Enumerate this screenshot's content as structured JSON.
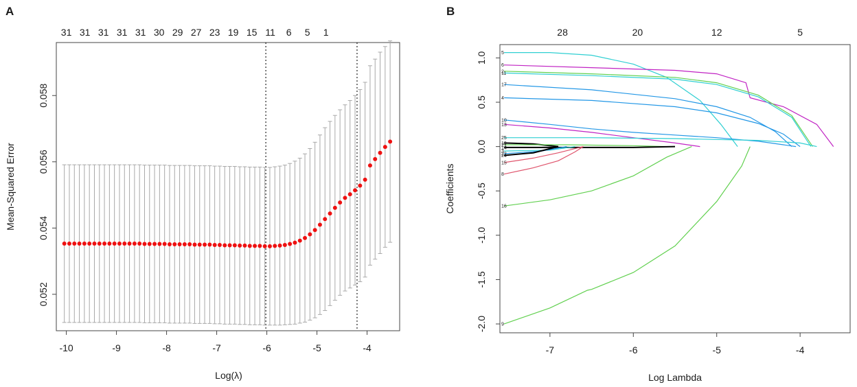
{
  "panel_labels": [
    "A",
    "B"
  ],
  "chart_data": [
    {
      "type": "scatter",
      "title": "",
      "xlabel": "Log(λ)",
      "ylabel": "Mean-Squared Error",
      "xlim": [
        -10.2,
        -3.35
      ],
      "ylim": [
        0.0509,
        0.0596
      ],
      "x_ticks": [
        -10,
        -9,
        -8,
        -7,
        -6,
        -5,
        -4
      ],
      "x_tick_labels": [
        "-10",
        "-9",
        "-8",
        "-7",
        "-6",
        "-5",
        "-4"
      ],
      "y_ticks": [
        0.052,
        0.054,
        0.056,
        0.058
      ],
      "y_tick_labels": [
        "0.052",
        "0.054",
        "0.056",
        "0.058"
      ],
      "top_axis_labels": [
        "31",
        "31",
        "31",
        "31",
        "31",
        "30",
        "29",
        "27",
        "23",
        "19",
        "15",
        "11",
        "6",
        "5",
        "1"
      ],
      "top_axis_label_x": [
        -10,
        -9.63,
        -9.26,
        -8.89,
        -8.52,
        -8.15,
        -7.78,
        -7.41,
        -7.04,
        -6.67,
        -6.3,
        -5.93,
        -5.56,
        -5.19,
        -4.82
      ],
      "vlines": [
        -6.02,
        -4.2
      ],
      "series": [
        {
          "name": "cv-mean",
          "x": [
            -10.04,
            -9.94,
            -9.84,
            -9.74,
            -9.64,
            -9.54,
            -9.44,
            -9.34,
            -9.24,
            -9.14,
            -9.04,
            -8.94,
            -8.84,
            -8.74,
            -8.64,
            -8.54,
            -8.44,
            -8.34,
            -8.24,
            -8.14,
            -8.04,
            -7.94,
            -7.84,
            -7.74,
            -7.64,
            -7.54,
            -7.44,
            -7.34,
            -7.24,
            -7.14,
            -7.04,
            -6.94,
            -6.84,
            -6.74,
            -6.64,
            -6.54,
            -6.44,
            -6.34,
            -6.24,
            -6.14,
            -6.04,
            -5.94,
            -5.84,
            -5.74,
            -5.64,
            -5.54,
            -5.44,
            -5.34,
            -5.24,
            -5.14,
            -5.04,
            -4.94,
            -4.84,
            -4.74,
            -4.64,
            -4.54,
            -4.44,
            -4.34,
            -4.24,
            -4.14,
            -4.04,
            -3.94,
            -3.84,
            -3.74,
            -3.64,
            -3.54
          ],
          "mean": [
            0.05353,
            0.05353,
            0.05353,
            0.05353,
            0.05353,
            0.05353,
            0.05353,
            0.05353,
            0.05353,
            0.05353,
            0.05353,
            0.05353,
            0.05353,
            0.05353,
            0.05353,
            0.05353,
            0.05352,
            0.05352,
            0.05352,
            0.05352,
            0.05352,
            0.05351,
            0.05351,
            0.05351,
            0.05351,
            0.05351,
            0.0535,
            0.0535,
            0.0535,
            0.0535,
            0.05349,
            0.05349,
            0.05348,
            0.05348,
            0.05348,
            0.05347,
            0.05347,
            0.05346,
            0.05346,
            0.05346,
            0.05345,
            0.05345,
            0.05346,
            0.05347,
            0.05349,
            0.05352,
            0.05356,
            0.05362,
            0.0537,
            0.05381,
            0.05394,
            0.0541,
            0.05427,
            0.05444,
            0.05461,
            0.05477,
            0.05491,
            0.05502,
            0.05514,
            0.05528,
            0.05546,
            0.05589,
            0.05608,
            0.05627,
            0.05645,
            0.05661
          ],
          "upper": [
            0.05591,
            0.05591,
            0.05591,
            0.05591,
            0.05591,
            0.05591,
            0.05591,
            0.05591,
            0.05591,
            0.05591,
            0.05591,
            0.05591,
            0.05591,
            0.05591,
            0.05591,
            0.05591,
            0.0559,
            0.0559,
            0.0559,
            0.0559,
            0.0559,
            0.05589,
            0.05589,
            0.05589,
            0.05589,
            0.05589,
            0.05588,
            0.05588,
            0.05588,
            0.05588,
            0.05587,
            0.05587,
            0.05586,
            0.05586,
            0.05586,
            0.05585,
            0.05585,
            0.05584,
            0.05584,
            0.05584,
            0.05583,
            0.05583,
            0.05585,
            0.05587,
            0.0559,
            0.05595,
            0.05602,
            0.05611,
            0.05624,
            0.0564,
            0.05659,
            0.05681,
            0.05703,
            0.05722,
            0.0574,
            0.05757,
            0.05772,
            0.05785,
            0.058,
            0.05818,
            0.0584,
            0.0589,
            0.0591,
            0.05931,
            0.05948,
            0.05965
          ],
          "lower": [
            0.05115,
            0.05115,
            0.05115,
            0.05115,
            0.05115,
            0.05115,
            0.05115,
            0.05115,
            0.05115,
            0.05115,
            0.05115,
            0.05115,
            0.05115,
            0.05115,
            0.05115,
            0.05115,
            0.05114,
            0.05114,
            0.05114,
            0.05114,
            0.05114,
            0.05113,
            0.05113,
            0.05113,
            0.05113,
            0.05113,
            0.05112,
            0.05112,
            0.05112,
            0.05112,
            0.05111,
            0.05111,
            0.0511,
            0.0511,
            0.0511,
            0.05109,
            0.05109,
            0.05108,
            0.05108,
            0.05108,
            0.05107,
            0.05107,
            0.05107,
            0.05107,
            0.05108,
            0.05109,
            0.0511,
            0.05113,
            0.05116,
            0.05122,
            0.05129,
            0.05139,
            0.05151,
            0.05166,
            0.05182,
            0.05197,
            0.0521,
            0.05219,
            0.05228,
            0.05238,
            0.05252,
            0.05288,
            0.05306,
            0.05323,
            0.05342,
            0.05357
          ]
        }
      ]
    },
    {
      "type": "line",
      "title": "",
      "xlabel": "Log Lambda",
      "ylabel": "Coefficients",
      "xlim": [
        -7.6,
        -3.4
      ],
      "ylim": [
        -2.1,
        1.15
      ],
      "x_ticks": [
        -7,
        -6,
        -5,
        -4
      ],
      "x_tick_labels": [
        "-7",
        "-6",
        "-5",
        "-4"
      ],
      "y_ticks": [
        -2.0,
        -1.5,
        -1.0,
        -0.5,
        0.0,
        0.5,
        1.0
      ],
      "y_tick_labels": [
        "-2.0",
        "-1.5",
        "-1.0",
        "-0.5",
        "0.0",
        "0.5",
        "1.0"
      ],
      "top_axis_labels": [
        "28",
        "20",
        "12",
        "5"
      ],
      "top_axis_label_x": [
        -6.85,
        -5.95,
        -5.0,
        -4.0
      ],
      "series": [
        {
          "name": "5",
          "color": "#2ECFD2",
          "x": [
            -7.55,
            -7.0,
            -6.5,
            -6.0,
            -5.6,
            -5.2,
            -4.95,
            -4.75
          ],
          "y": [
            1.06,
            1.06,
            1.03,
            0.93,
            0.78,
            0.52,
            0.25,
            0.0
          ]
        },
        {
          "name": "6",
          "color": "#C021C3",
          "x": [
            -7.55,
            -6.5,
            -5.5,
            -5.0,
            -4.65,
            -4.6,
            -4.2,
            -3.8,
            -3.6
          ],
          "y": [
            0.92,
            0.89,
            0.86,
            0.82,
            0.72,
            0.55,
            0.45,
            0.25,
            0.0
          ]
        },
        {
          "name": "2",
          "color": "#61D04F",
          "x": [
            -7.55,
            -6.5,
            -5.5,
            -5.0,
            -4.5,
            -4.1,
            -3.85
          ],
          "y": [
            0.85,
            0.82,
            0.78,
            0.72,
            0.58,
            0.35,
            0.0
          ]
        },
        {
          "name": "11",
          "color": "#2ECFD2",
          "x": [
            -7.55,
            -6.5,
            -5.5,
            -5.0,
            -4.5,
            -4.1,
            -3.87
          ],
          "y": [
            0.83,
            0.8,
            0.76,
            0.7,
            0.56,
            0.33,
            0.0
          ]
        },
        {
          "name": "17",
          "color": "#2297E6",
          "x": [
            -7.55,
            -6.5,
            -5.5,
            -5.0,
            -4.6,
            -4.3,
            -4.1
          ],
          "y": [
            0.7,
            0.64,
            0.54,
            0.45,
            0.33,
            0.17,
            0.0
          ]
        },
        {
          "name": "4",
          "color": "#2297E6",
          "x": [
            -7.55,
            -6.5,
            -5.5,
            -5.0,
            -4.5,
            -4.2,
            -4.0
          ],
          "y": [
            0.55,
            0.52,
            0.45,
            0.38,
            0.26,
            0.14,
            0.0
          ]
        },
        {
          "name": "10",
          "color": "#2297E6",
          "x": [
            -7.55,
            -7.0,
            -6.5,
            -6.0,
            -5.5,
            -5.0,
            -4.5,
            -4.2,
            -4.05
          ],
          "y": [
            0.3,
            0.25,
            0.2,
            0.16,
            0.13,
            0.1,
            0.06,
            0.02,
            0.0
          ]
        },
        {
          "name": "13",
          "color": "#C021C3",
          "x": [
            -7.55,
            -7.0,
            -6.5,
            -6.0,
            -5.5,
            -5.2
          ],
          "y": [
            0.25,
            0.21,
            0.16,
            0.1,
            0.04,
            0.0
          ]
        },
        {
          "name": "25",
          "color": "#2ECFD2",
          "x": [
            -7.55,
            -6.5,
            -5.5,
            -5.0,
            -4.5,
            -4.0,
            -3.8
          ],
          "y": [
            0.1,
            0.1,
            0.09,
            0.08,
            0.07,
            0.04,
            0.0
          ]
        },
        {
          "name": "19",
          "color": "#000000",
          "x": [
            -7.55,
            -7.2,
            -6.9
          ],
          "y": [
            0.04,
            0.03,
            0.0
          ]
        },
        {
          "name": "21",
          "color": "#61D04F",
          "x": [
            -7.55,
            -6.8,
            -6.0,
            -5.6
          ],
          "y": [
            0.02,
            0.02,
            0.01,
            0.0
          ]
        },
        {
          "name": "14",
          "color": "#000000",
          "x": [
            -7.55,
            -6.5,
            -6.0,
            -5.5
          ],
          "y": [
            -0.01,
            -0.01,
            -0.01,
            0.0
          ]
        },
        {
          "name": "3",
          "color": "#2ECFD2",
          "x": [
            -7.55,
            -7.0,
            -6.7
          ],
          "y": [
            -0.05,
            -0.04,
            0.0
          ]
        },
        {
          "name": "22",
          "color": "#2297E6",
          "x": [
            -7.55,
            -7.1,
            -6.8
          ],
          "y": [
            -0.08,
            -0.05,
            0.0
          ]
        },
        {
          "name": "24",
          "color": "#000000",
          "x": [
            -7.55,
            -7.2,
            -6.9
          ],
          "y": [
            -0.1,
            -0.07,
            0.0
          ]
        },
        {
          "name": "15",
          "color": "#DF536B",
          "x": [
            -7.55,
            -7.2,
            -6.9,
            -6.6
          ],
          "y": [
            -0.18,
            -0.13,
            -0.07,
            0.0
          ]
        },
        {
          "name": "8",
          "color": "#DF536B",
          "x": [
            -7.55,
            -7.2,
            -6.9,
            -6.7,
            -6.6
          ],
          "y": [
            -0.31,
            -0.24,
            -0.16,
            -0.06,
            0.0
          ]
        },
        {
          "name": "16",
          "color": "#61D04F",
          "x": [
            -7.55,
            -7.0,
            -6.5,
            -6.0,
            -5.6,
            -5.3
          ],
          "y": [
            -0.67,
            -0.6,
            -0.5,
            -0.33,
            -0.12,
            0.0
          ]
        },
        {
          "name": "9",
          "color": "#61D04F",
          "x": [
            -7.55,
            -7.0,
            -6.55,
            -6.5,
            -6.0,
            -5.5,
            -5.0,
            -4.7,
            -4.6
          ],
          "y": [
            -2.0,
            -1.82,
            -1.62,
            -1.61,
            -1.42,
            -1.12,
            -0.62,
            -0.22,
            0.0
          ]
        }
      ]
    }
  ]
}
